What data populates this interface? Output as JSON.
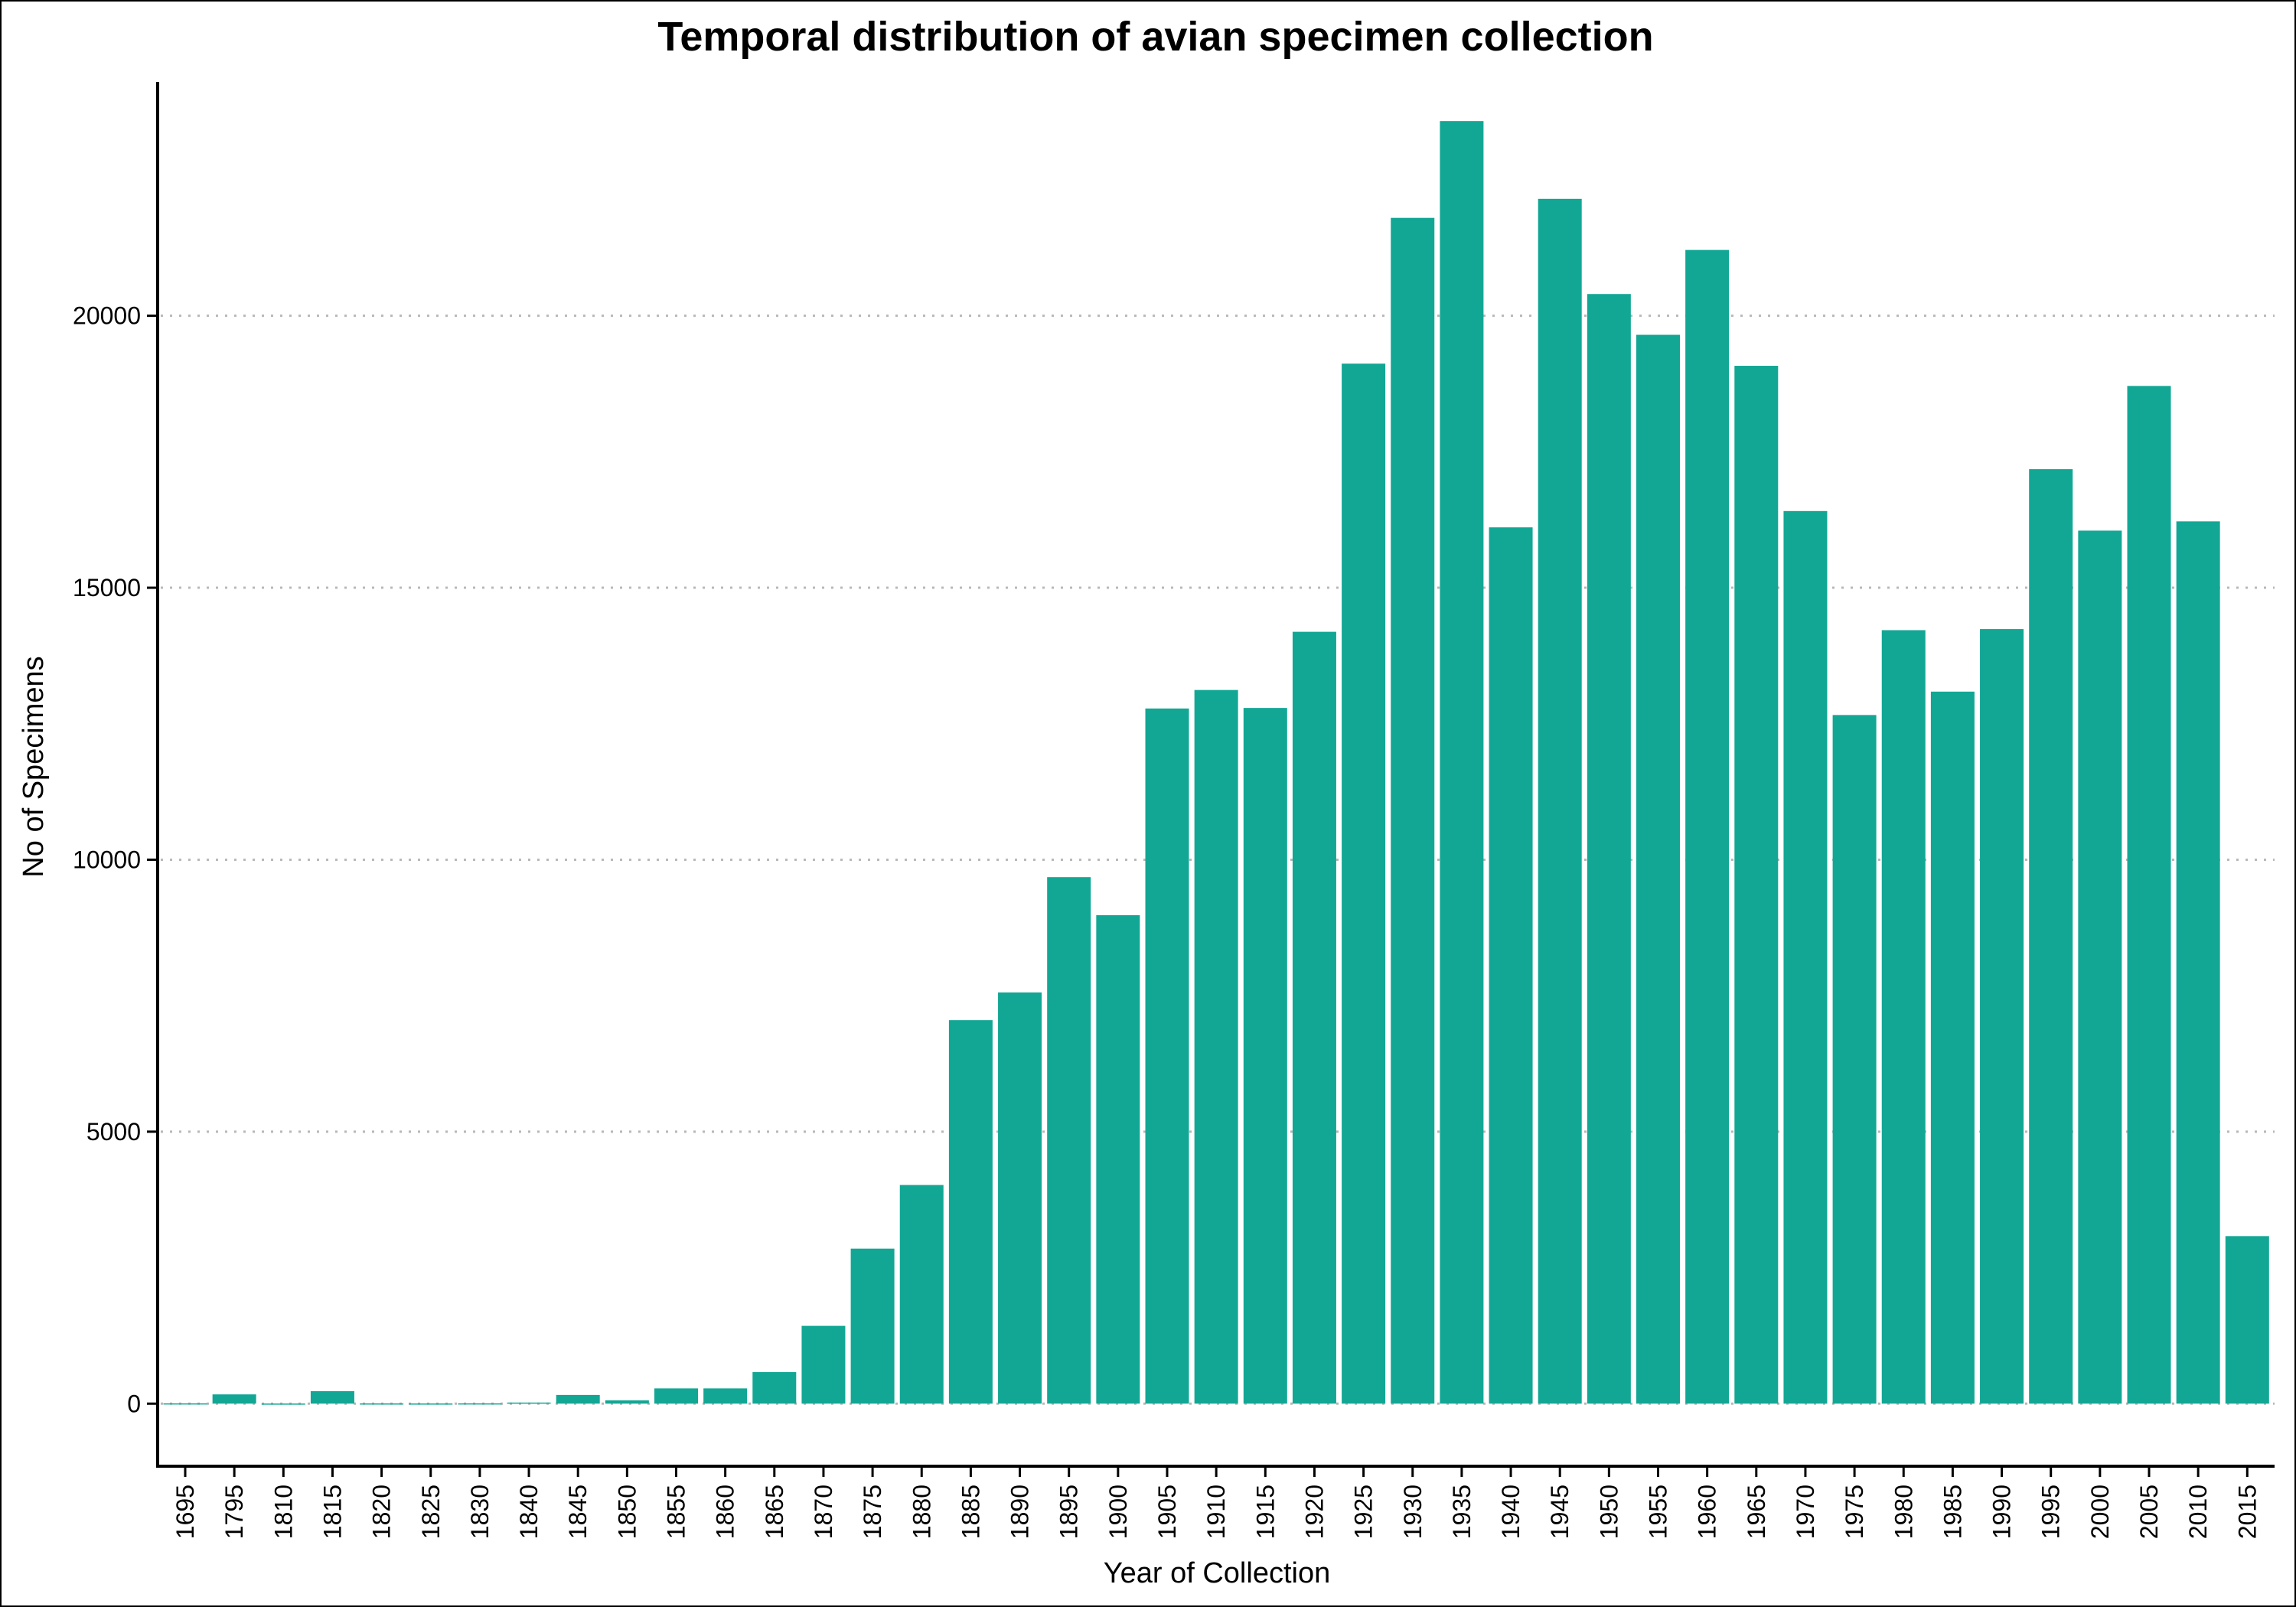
{
  "chart_data": {
    "type": "bar",
    "title": "Temporal distribution of avian specimen collection",
    "xlabel": "Year of Collection",
    "ylabel": "No of Specimens",
    "ylim": [
      -1150,
      24300
    ],
    "yticks": [
      0,
      5000,
      10000,
      15000,
      20000
    ],
    "grid": "horizontal-dotted",
    "legend": "none",
    "bar_color": "#12A795",
    "grid_color": "#B8B8B8",
    "categories": [
      "1695",
      "1795",
      "1810",
      "1815",
      "1820",
      "1825",
      "1830",
      "1840",
      "1845",
      "1850",
      "1855",
      "1860",
      "1865",
      "1870",
      "1875",
      "1880",
      "1885",
      "1890",
      "1895",
      "1900",
      "1905",
      "1910",
      "1915",
      "1920",
      "1925",
      "1930",
      "1935",
      "1940",
      "1945",
      "1950",
      "1955",
      "1960",
      "1965",
      "1970",
      "1975",
      "1980",
      "1985",
      "1990",
      "1995",
      "2000",
      "2005",
      "2010",
      "2015"
    ],
    "values": [
      5,
      170,
      2,
      230,
      4,
      3,
      5,
      20,
      160,
      60,
      280,
      280,
      580,
      1430,
      2850,
      4020,
      7050,
      7560,
      9680,
      8980,
      12780,
      13120,
      12790,
      14190,
      19120,
      21800,
      23580,
      16110,
      22150,
      20400,
      19650,
      21210,
      19080,
      16410,
      12660,
      14220,
      13090,
      14240,
      17180,
      16050,
      18710,
      16220,
      3080
    ]
  }
}
